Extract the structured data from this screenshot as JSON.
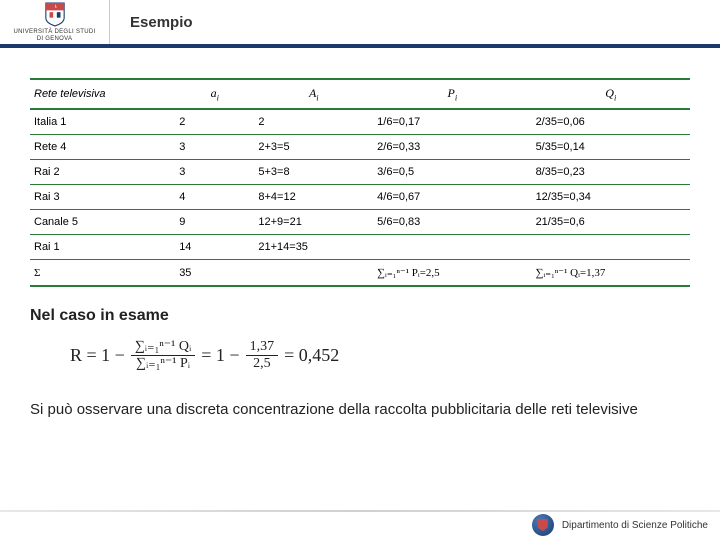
{
  "header": {
    "uni_line1": "UNIVERSITÀ DEGLI STUDI",
    "uni_line2": "DI GENOVA",
    "title": "Esempio"
  },
  "table": {
    "headers": {
      "col1": "Rete televisiva",
      "col2": "aᵢ",
      "col3": "Aᵢ",
      "col4": "Pᵢ",
      "col5": "Qᵢ"
    },
    "rows": [
      {
        "name": "Italia 1",
        "a": "2",
        "A": "2",
        "P": "1/6=0,17",
        "Q": "2/35=0,06"
      },
      {
        "name": "Rete 4",
        "a": "3",
        "A": "2+3=5",
        "P": "2/6=0,33",
        "Q": "5/35=0,14"
      },
      {
        "name": "Rai 2",
        "a": "3",
        "A": "5+3=8",
        "P": "3/6=0,5",
        "Q": "8/35=0,23"
      },
      {
        "name": "Rai 3",
        "a": "4",
        "A": "8+4=12",
        "P": "4/6=0,67",
        "Q": "12/35=0,34"
      },
      {
        "name": "Canale 5",
        "a": "9",
        "A": "12+9=21",
        "P": "5/6=0,83",
        "Q": "21/35=0,6"
      },
      {
        "name": "Rai 1",
        "a": "14",
        "A": "21+14=35",
        "P": "",
        "Q": ""
      }
    ],
    "sum_row": {
      "label": "Σ",
      "a": "35",
      "P": "∑ᵢ₌₁ⁿ⁻¹ Pᵢ=2,5",
      "Q": "∑ᵢ₌₁ⁿ⁻¹ Qᵢ=1,37"
    }
  },
  "section": {
    "title": "Nel caso in esame",
    "formula_prefix": "R = 1 −",
    "frac_top": "∑ᵢ₌₁ⁿ⁻¹ Qᵢ",
    "frac_bot": "∑ᵢ₌₁ⁿ⁻¹ Pᵢ",
    "eq_mid": "= 1 −",
    "frac2_top": "1,37",
    "frac2_bot": "2,5",
    "result": "= 0,452"
  },
  "observation": "Si può osservare una discreta concentrazione della raccolta pubblicitaria delle reti televisive",
  "footer": {
    "dept": "Dipartimento di Scienze Politiche"
  },
  "colors": {
    "header_border": "#1a3a6e",
    "table_border": "#2a7a3a",
    "shield_red": "#c94a4a"
  }
}
